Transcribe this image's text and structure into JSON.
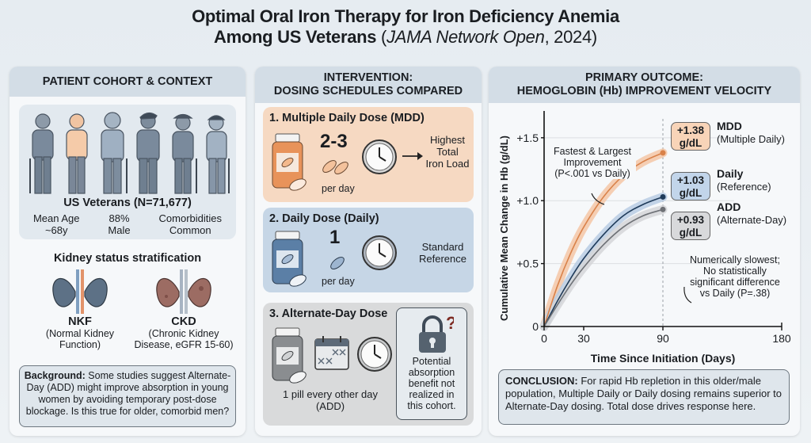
{
  "header": {
    "title_line1": "Optimal Oral Iron Therapy for Iron Deficiency Anemia",
    "title_line2_bold": "Among US Veterans",
    "title_line2_open": " (",
    "title_line2_journal": "JAMA Network Open",
    "title_line2_year": ", 2024)"
  },
  "cohort_panel": {
    "heading": "PATIENT COHORT & CONTEXT",
    "cohort_label": "US Veterans (N=71,677)",
    "stats": [
      {
        "line1": "Mean Age",
        "line2": "~68y"
      },
      {
        "line1": "88%",
        "line2": "Male"
      },
      {
        "line1": "Comorbidities",
        "line2": "Common"
      }
    ],
    "kidney_heading": "Kidney status stratification",
    "kidneys": [
      {
        "abbr": "NKF",
        "desc1": "(Normal Kidney",
        "desc2": "Function)",
        "color": "#5d7186"
      },
      {
        "abbr": "CKD",
        "desc1": "(Chronic Kidney",
        "desc2": "Disease, eGFR 15-60)",
        "color": "#9c6c63"
      }
    ],
    "background_label": "Background:",
    "background_text": " Some studies suggest Alternate-Day (ADD) might improve absorption in young women by avoiding temporary post-dose blockage. Is this true for older, comorbid men?"
  },
  "intervention_panel": {
    "heading_line1": "INTERVENTION:",
    "heading_line2": "DOSING SCHEDULES COMPARED",
    "cards": [
      {
        "title": "1. Multiple Daily Dose (MDD)",
        "count": "2-3",
        "unit": "per day",
        "desc1": "Highest",
        "desc2": "Total",
        "desc3": "Iron Load",
        "color": "#e8935a"
      },
      {
        "title": "2. Daily Dose (Daily)",
        "count": "1",
        "unit": "per day",
        "desc1": "Standard",
        "desc2": "Reference",
        "color": "#5b7fa6"
      },
      {
        "title": "3. Alternate-Day Dose",
        "unit1": "1 pill every other day",
        "unit2": "(ADD)",
        "callout1": "Potential",
        "callout2": "absorption",
        "callout3": "benefit not",
        "callout4": "realized in",
        "callout5": "this cohort.",
        "color": "#8a8d90"
      }
    ]
  },
  "outcome_panel": {
    "heading_line1": "PRIMARY OUTCOME:",
    "heading_line2": "HEMOGLOBIN (Hb) IMPROVEMENT VELOCITY",
    "annotation_top1": "Fastest & Largest",
    "annotation_top2": "Improvement",
    "annotation_top3": "(P<.001 vs Daily)",
    "annotation_bottom1": "Numerically slowest;",
    "annotation_bottom2": "No statistically",
    "annotation_bottom3": "significant difference",
    "annotation_bottom4": "vs Daily (P=.38)",
    "conclusion_label": "CONCLUSION:",
    "conclusion_text": " For rapid Hb repletion in this older/male population, Multiple Daily or Daily dosing remains superior to Alternate-Day dosing. Total dose drives response here."
  },
  "chart_data": {
    "type": "line",
    "title": "HEMOGLOBIN (Hb) IMPROVEMENT VELOCITY",
    "xlabel": "Time Since Initiation (Days)",
    "ylabel": "Cumulative Mean Change in Hb (g/dL)",
    "xlim": [
      0,
      180
    ],
    "ylim": [
      0,
      1.65
    ],
    "xticks": [
      0,
      30,
      90,
      180
    ],
    "xtick_labels": [
      "0",
      "30",
      "90",
      "180"
    ],
    "yticks": [
      0,
      0.5,
      1.0,
      1.5
    ],
    "ytick_labels": [
      "0",
      "+0.5",
      "+1.0",
      "+1.5"
    ],
    "grid": "horizontal",
    "reference_line_x": 90,
    "series": [
      {
        "name": "MDD",
        "subtitle": "(Multiple Daily)",
        "color": "#d9824a",
        "band": "#f4c7a6",
        "x": [
          0,
          10,
          20,
          30,
          45,
          60,
          75,
          90
        ],
        "y": [
          0,
          0.32,
          0.58,
          0.79,
          1.03,
          1.2,
          1.31,
          1.38
        ],
        "label_value": "+1.38",
        "label_unit": "g/dL",
        "label_bg": "#f8d4b8"
      },
      {
        "name": "Daily",
        "subtitle": "(Reference)",
        "color": "#1f3b5a",
        "band": "#b9cde3",
        "x": [
          0,
          10,
          20,
          30,
          45,
          60,
          75,
          90
        ],
        "y": [
          0,
          0.2,
          0.38,
          0.54,
          0.73,
          0.88,
          0.97,
          1.03
        ],
        "label_value": "+1.03",
        "label_unit": "g/dL",
        "label_bg": "#c2d5ea"
      },
      {
        "name": "ADD",
        "subtitle": "(Alternate-Day)",
        "color": "#6e7176",
        "band": "#d5d6d8",
        "x": [
          0,
          10,
          20,
          30,
          45,
          60,
          75,
          90
        ],
        "y": [
          0,
          0.17,
          0.33,
          0.47,
          0.65,
          0.79,
          0.88,
          0.93
        ],
        "label_value": "+0.93",
        "label_unit": "g/dL",
        "label_bg": "#d8d9db"
      }
    ]
  }
}
